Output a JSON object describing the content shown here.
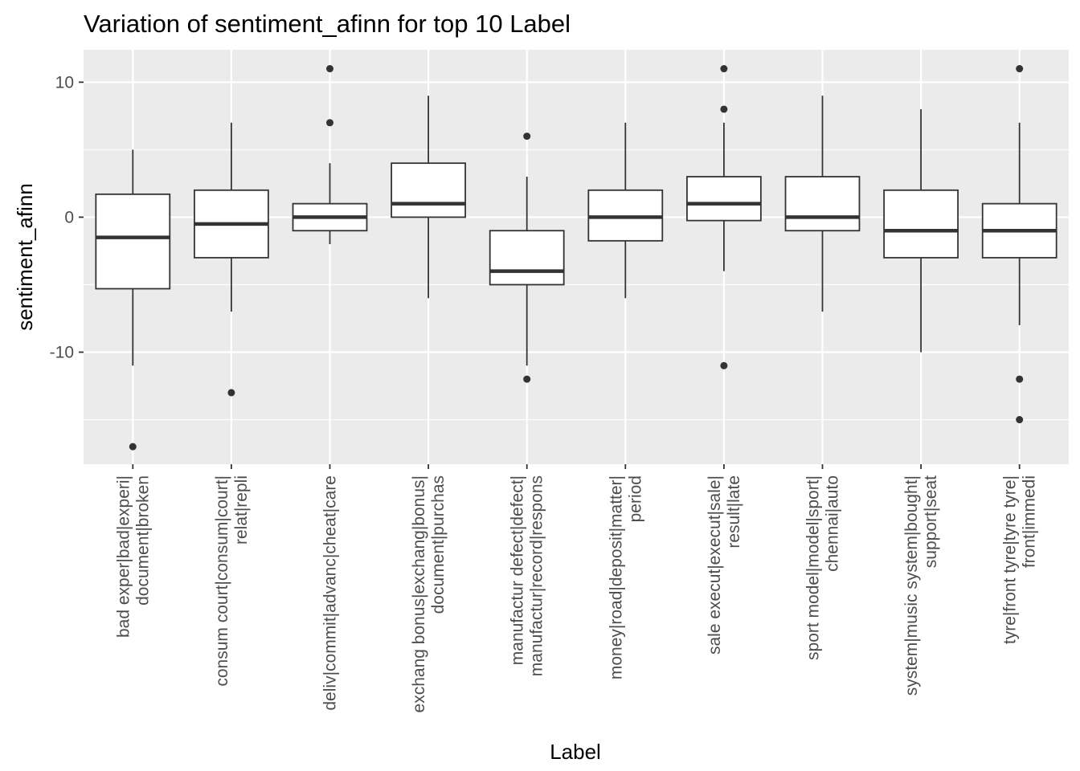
{
  "chart_data": {
    "type": "boxplot",
    "title": "Variation of  sentiment_afinn for top 10 Label",
    "xlabel": "Label",
    "ylabel": "sentiment_afinn",
    "ylim": [
      -18.3,
      12.4
    ],
    "yticks": [
      -10,
      0,
      10
    ],
    "yticks_minor": [
      -15,
      -5,
      5
    ],
    "grid": true,
    "colors": {
      "panel": "#ebebeb",
      "grid": "#ffffff",
      "box_fill": "#ffffff",
      "box_line": "#333333",
      "tick_text": "#4d4d4d",
      "tick_mark": "#333333"
    },
    "categories": [
      [
        "bad exper|bad|experi|",
        "document|broken"
      ],
      [
        "consum court|consum|court|",
        "relat|repli"
      ],
      [
        "deliv|commit|advanc|cheat|care"
      ],
      [
        "exchang bonus|exchang|bonus|",
        "document|purchas"
      ],
      [
        "manufactur defect|defect|",
        "manufactur|record|respons"
      ],
      [
        "money|road|deposit|matter|",
        "period"
      ],
      [
        "sale execut|execut|sale|",
        "result|late"
      ],
      [
        "sport model|model|sport|",
        "chennai|auto"
      ],
      [
        "system|music system|bought|",
        "support|seat"
      ],
      [
        "tyre|front tyre|tyre tyre|",
        "front|immedi"
      ]
    ],
    "boxes": [
      {
        "min": -11,
        "q1": -5.3,
        "median": -1.5,
        "q3": 1.7,
        "max": 5,
        "outliers": [
          -17
        ]
      },
      {
        "min": -7,
        "q1": -3,
        "median": -0.5,
        "q3": 2,
        "max": 7,
        "outliers": [
          -13
        ]
      },
      {
        "min": -2,
        "q1": -1,
        "median": 0,
        "q3": 1,
        "max": 4,
        "outliers": [
          7,
          11
        ]
      },
      {
        "min": -6,
        "q1": 0,
        "median": 1,
        "q3": 4,
        "max": 9,
        "outliers": []
      },
      {
        "min": -11,
        "q1": -5,
        "median": -4,
        "q3": -1,
        "max": 3,
        "outliers": [
          6,
          -12
        ]
      },
      {
        "min": -6,
        "q1": -1.75,
        "median": 0,
        "q3": 2,
        "max": 7,
        "outliers": []
      },
      {
        "min": -4,
        "q1": -0.25,
        "median": 1,
        "q3": 3,
        "max": 7,
        "outliers": [
          8,
          11,
          -11
        ]
      },
      {
        "min": -7,
        "q1": -1,
        "median": 0,
        "q3": 3,
        "max": 9,
        "outliers": []
      },
      {
        "min": -10,
        "q1": -3,
        "median": -1,
        "q3": 2,
        "max": 8,
        "outliers": []
      },
      {
        "min": -8,
        "q1": -3,
        "median": -1,
        "q3": 1,
        "max": 7,
        "outliers": [
          11,
          -12,
          -15
        ]
      }
    ]
  }
}
